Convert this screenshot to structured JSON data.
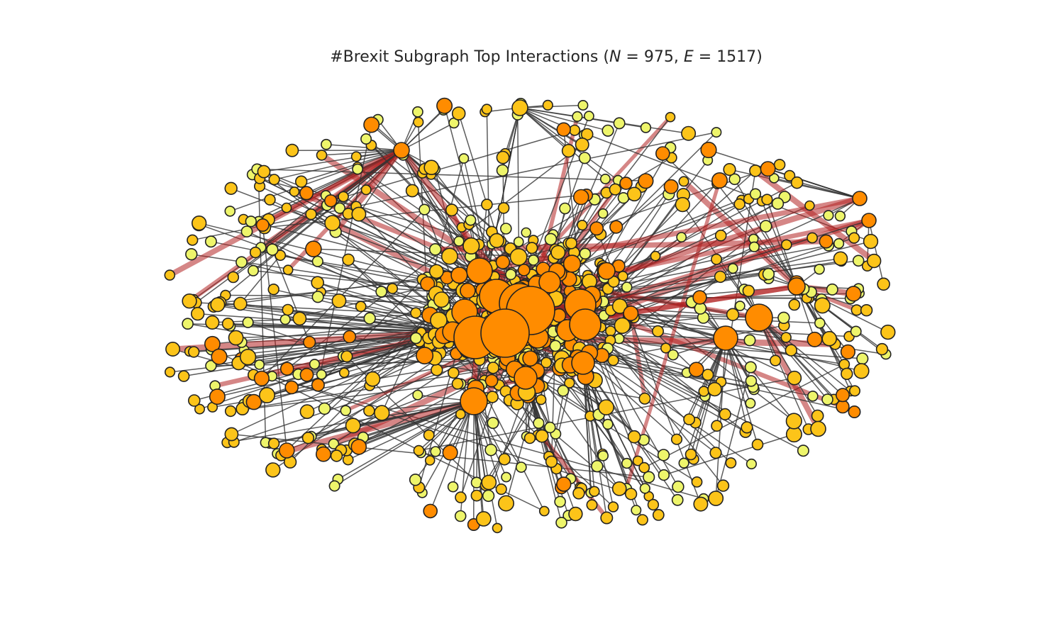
{
  "title": {
    "prefix": "#Brexit Subgraph Top Interactions (",
    "n_symbol": "N",
    "n_value": "975",
    "e_symbol": "E",
    "e_value": "1517",
    "eq": " = ",
    "sep": ", ",
    "suffix": ")"
  },
  "colors": {
    "background": "#ffffff",
    "node_stroke": "#222222",
    "edge_normal": "#333333",
    "edge_strong": "#b22222",
    "node_small": "#eef56b",
    "node_medium": "#fcc419",
    "node_large": "#ff8c00"
  }
}
